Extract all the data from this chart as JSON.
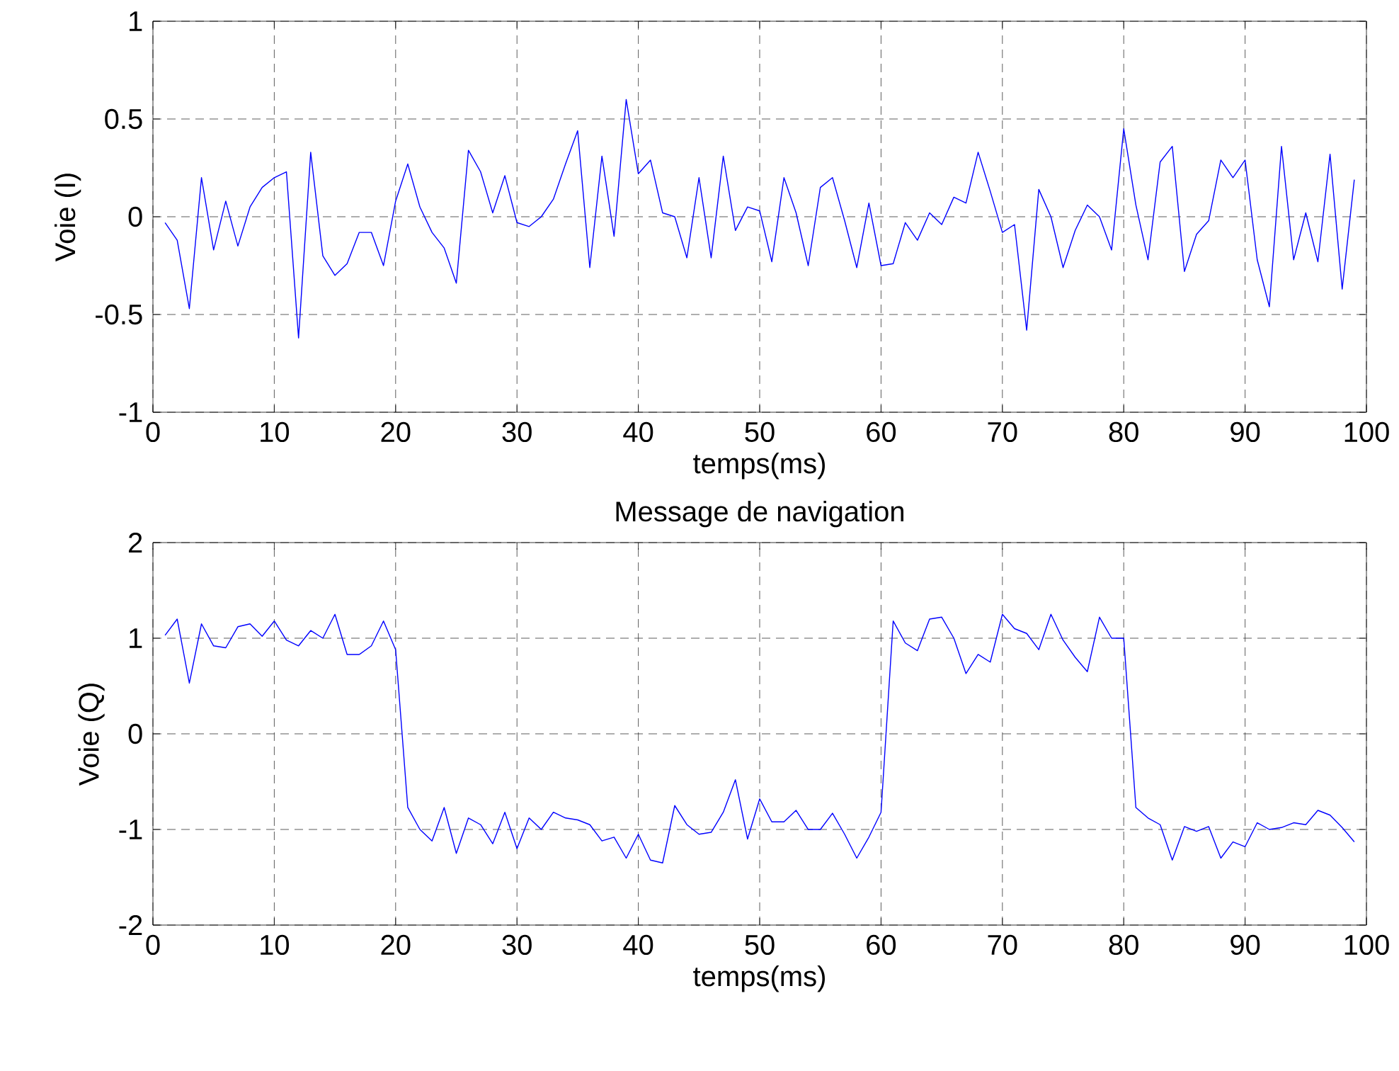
{
  "chart_data": [
    {
      "type": "line",
      "xlabel": "temps(ms)",
      "ylabel": "Voie (I)",
      "xlim": [
        0,
        100
      ],
      "ylim": [
        -1,
        1
      ],
      "xticks": [
        0,
        10,
        20,
        30,
        40,
        50,
        60,
        70,
        80,
        90,
        100
      ],
      "yticks": [
        -1,
        -0.5,
        0,
        0.5,
        1
      ],
      "grid": true,
      "line_style": "solid",
      "color": "#0000ff",
      "x": [
        1,
        2,
        3,
        4,
        5,
        6,
        7,
        8,
        9,
        10,
        11,
        12,
        13,
        14,
        15,
        16,
        17,
        18,
        19,
        20,
        21,
        22,
        23,
        24,
        25,
        26,
        27,
        28,
        29,
        30,
        31,
        32,
        33,
        34,
        35,
        36,
        37,
        38,
        39,
        40,
        41,
        42,
        43,
        44,
        45,
        46,
        47,
        48,
        49,
        50,
        51,
        52,
        53,
        54,
        55,
        56,
        57,
        58,
        59,
        60,
        61,
        62,
        63,
        64,
        65,
        66,
        67,
        68,
        69,
        70,
        71,
        72,
        73,
        74,
        75,
        76,
        77,
        78,
        79,
        80,
        81,
        82,
        83,
        84,
        85,
        86,
        87,
        88,
        89,
        90,
        91,
        92,
        93,
        94,
        95,
        96,
        97,
        98,
        99
      ],
      "values": [
        -0.03,
        -0.12,
        -0.47,
        0.2,
        -0.17,
        0.08,
        -0.15,
        0.05,
        0.15,
        0.2,
        0.23,
        -0.62,
        0.33,
        -0.2,
        -0.3,
        -0.24,
        -0.08,
        -0.08,
        -0.25,
        0.08,
        0.27,
        0.05,
        -0.08,
        -0.16,
        -0.34,
        0.34,
        0.23,
        0.02,
        0.21,
        -0.03,
        -0.05,
        0.0,
        0.09,
        0.27,
        0.44,
        -0.26,
        0.31,
        -0.1,
        0.6,
        0.22,
        0.29,
        0.02,
        0.0,
        -0.21,
        0.2,
        -0.21,
        0.31,
        -0.07,
        0.05,
        0.03,
        -0.23,
        0.2,
        0.02,
        -0.25,
        0.15,
        0.2,
        -0.02,
        -0.26,
        0.07,
        -0.25,
        -0.24,
        -0.03,
        -0.12,
        0.02,
        -0.04,
        0.1,
        0.07,
        0.33,
        0.13,
        -0.08,
        -0.04,
        -0.58,
        0.14,
        0.0,
        -0.26,
        -0.07,
        0.06,
        0.0,
        -0.17,
        0.45,
        0.06,
        -0.22,
        0.28,
        0.36,
        -0.28,
        -0.09,
        -0.02,
        0.29,
        0.2,
        0.29,
        -0.22,
        -0.46,
        0.36,
        -0.22,
        0.02,
        -0.23,
        0.32,
        -0.37,
        0.19
      ]
    },
    {
      "type": "line",
      "title": "Message de navigation",
      "xlabel": "temps(ms)",
      "ylabel": "Voie (Q)",
      "xlim": [
        0,
        100
      ],
      "ylim": [
        -2,
        2
      ],
      "xticks": [
        0,
        10,
        20,
        30,
        40,
        50,
        60,
        70,
        80,
        90,
        100
      ],
      "yticks": [
        -2,
        -1,
        0,
        1,
        2
      ],
      "grid": true,
      "line_style": "solid",
      "color": "#0000ff",
      "x": [
        1,
        2,
        3,
        4,
        5,
        6,
        7,
        8,
        9,
        10,
        11,
        12,
        13,
        14,
        15,
        16,
        17,
        18,
        19,
        20,
        21,
        22,
        23,
        24,
        25,
        26,
        27,
        28,
        29,
        30,
        31,
        32,
        33,
        34,
        35,
        36,
        37,
        38,
        39,
        40,
        41,
        42,
        43,
        44,
        45,
        46,
        47,
        48,
        49,
        50,
        51,
        52,
        53,
        54,
        55,
        56,
        57,
        58,
        59,
        60,
        61,
        62,
        63,
        64,
        65,
        66,
        67,
        68,
        69,
        70,
        71,
        72,
        73,
        74,
        75,
        76,
        77,
        78,
        79,
        80,
        81,
        82,
        83,
        84,
        85,
        86,
        87,
        88,
        89,
        90,
        91,
        92,
        93,
        94,
        95,
        96,
        97,
        98,
        99
      ],
      "values": [
        1.03,
        1.2,
        0.53,
        1.15,
        0.92,
        0.9,
        1.12,
        1.15,
        1.02,
        1.18,
        0.98,
        0.92,
        1.08,
        1.0,
        1.25,
        0.83,
        0.83,
        0.92,
        1.18,
        0.88,
        -0.77,
        -1.0,
        -1.12,
        -0.77,
        -1.25,
        -0.88,
        -0.95,
        -1.15,
        -0.82,
        -1.2,
        -0.88,
        -1.0,
        -0.82,
        -0.88,
        -0.9,
        -0.95,
        -1.12,
        -1.08,
        -1.3,
        -1.05,
        -1.32,
        -1.35,
        -0.75,
        -0.95,
        -1.05,
        -1.03,
        -0.82,
        -0.48,
        -1.1,
        -0.68,
        -0.92,
        -0.92,
        -0.8,
        -1.0,
        -1.0,
        -0.83,
        -1.05,
        -1.3,
        -1.08,
        -0.82,
        1.18,
        0.95,
        0.87,
        1.2,
        1.22,
        1.0,
        0.63,
        0.83,
        0.75,
        1.25,
        1.1,
        1.05,
        0.88,
        1.25,
        0.98,
        0.8,
        0.65,
        1.22,
        1.0,
        1.0,
        -0.77,
        -0.88,
        -0.95,
        -1.32,
        -0.97,
        -1.02,
        -0.97,
        -1.3,
        -1.13,
        -1.18,
        -0.93,
        -1.0,
        -0.98,
        -0.93,
        -0.95,
        -0.8,
        -0.85,
        -0.98,
        -1.13
      ]
    }
  ]
}
